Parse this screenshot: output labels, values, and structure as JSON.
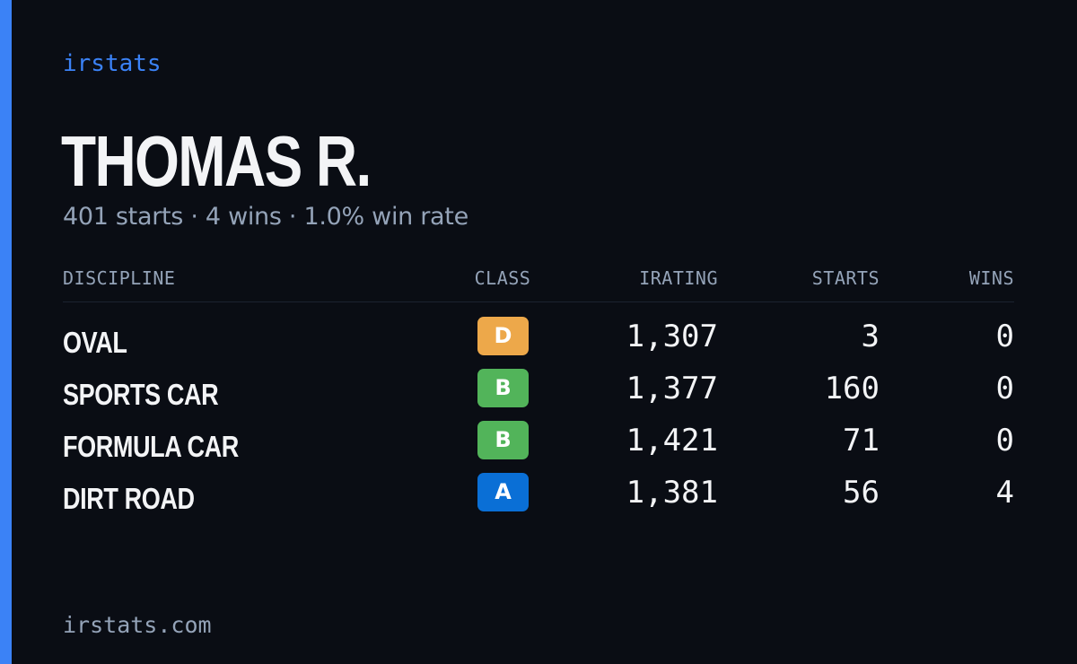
{
  "brand": "irstats",
  "player": {
    "name": "THOMAS R.",
    "summary": "401 starts · 4 wins · 1.0% win rate"
  },
  "table": {
    "headers": {
      "discipline": "DISCIPLINE",
      "class": "CLASS",
      "irating": "IRATING",
      "starts": "STARTS",
      "wins": "WINS"
    },
    "rows": [
      {
        "discipline": "OVAL",
        "class": "D",
        "class_color": "#eda84a",
        "irating": "1,307",
        "starts": "3",
        "wins": "0"
      },
      {
        "discipline": "SPORTS CAR",
        "class": "B",
        "class_color": "#52b45a",
        "irating": "1,377",
        "starts": "160",
        "wins": "0"
      },
      {
        "discipline": "FORMULA CAR",
        "class": "B",
        "class_color": "#52b45a",
        "irating": "1,421",
        "starts": "71",
        "wins": "0"
      },
      {
        "discipline": "DIRT ROAD",
        "class": "A",
        "class_color": "#0a6fd6",
        "irating": "1,381",
        "starts": "56",
        "wins": "4"
      }
    ]
  },
  "footer": {
    "domain": "irstats.com"
  },
  "colors": {
    "background": "#0a0d14",
    "accent": "#3b82f6",
    "text_primary": "#f3f4f6",
    "text_muted": "#94a3b8",
    "class_a": "#0a6fd6",
    "class_b": "#52b45a",
    "class_d": "#eda84a"
  }
}
